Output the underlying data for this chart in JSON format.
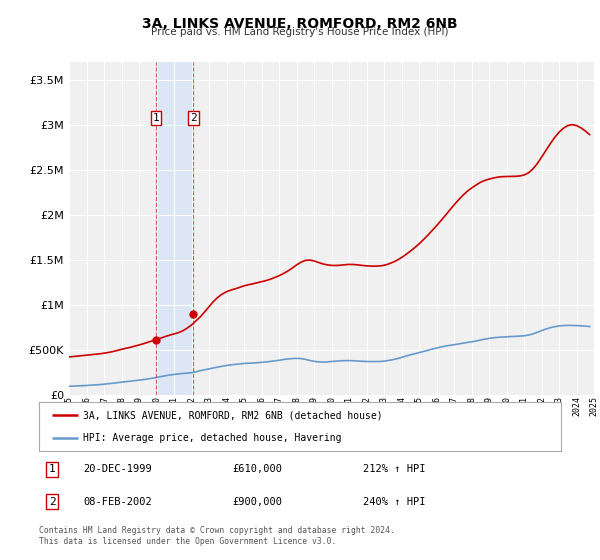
{
  "title": "3A, LINKS AVENUE, ROMFORD, RM2 6NB",
  "subtitle": "Price paid vs. HM Land Registry's House Price Index (HPI)",
  "red_label": "3A, LINKS AVENUE, ROMFORD, RM2 6NB (detached house)",
  "blue_label": "HPI: Average price, detached house, Havering",
  "sale1_date": "20-DEC-1999",
  "sale1_price": 610000,
  "sale1_hpi": "212%",
  "sale2_date": "08-FEB-2002",
  "sale2_price": 900000,
  "sale2_hpi": "240%",
  "sale1_x": 1999.97,
  "sale2_x": 2002.1,
  "copyright": "Contains HM Land Registry data © Crown copyright and database right 2024.\nThis data is licensed under the Open Government Licence v3.0.",
  "ylim": [
    0,
    3700000
  ],
  "xlim_start": 1995,
  "xlim_end": 2025,
  "background_color": "#ffffff",
  "plot_bg_color": "#f0f0f0",
  "grid_color": "#ffffff",
  "shade_color": "#dce6f5",
  "red_color": "#cc0000",
  "blue_color": "#6699cc",
  "dashed_color": "#cc0000",
  "hpi_years": [
    1995.0,
    1995.25,
    1995.5,
    1995.75,
    1996.0,
    1996.25,
    1996.5,
    1996.75,
    1997.0,
    1997.25,
    1997.5,
    1997.75,
    1998.0,
    1998.25,
    1998.5,
    1998.75,
    1999.0,
    1999.25,
    1999.5,
    1999.75,
    2000.0,
    2000.25,
    2000.5,
    2000.75,
    2001.0,
    2001.25,
    2001.5,
    2001.75,
    2002.0,
    2002.25,
    2002.5,
    2002.75,
    2003.0,
    2003.25,
    2003.5,
    2003.75,
    2004.0,
    2004.25,
    2004.5,
    2004.75,
    2005.0,
    2005.25,
    2005.5,
    2005.75,
    2006.0,
    2006.25,
    2006.5,
    2006.75,
    2007.0,
    2007.25,
    2007.5,
    2007.75,
    2008.0,
    2008.25,
    2008.5,
    2008.75,
    2009.0,
    2009.25,
    2009.5,
    2009.75,
    2010.0,
    2010.25,
    2010.5,
    2010.75,
    2011.0,
    2011.25,
    2011.5,
    2011.75,
    2012.0,
    2012.25,
    2012.5,
    2012.75,
    2013.0,
    2013.25,
    2013.5,
    2013.75,
    2014.0,
    2014.25,
    2014.5,
    2014.75,
    2015.0,
    2015.25,
    2015.5,
    2015.75,
    2016.0,
    2016.25,
    2016.5,
    2016.75,
    2017.0,
    2017.25,
    2017.5,
    2017.75,
    2018.0,
    2018.25,
    2018.5,
    2018.75,
    2019.0,
    2019.25,
    2019.5,
    2019.75,
    2020.0,
    2020.25,
    2020.5,
    2020.75,
    2021.0,
    2021.25,
    2021.5,
    2021.75,
    2022.0,
    2022.25,
    2022.5,
    2022.75,
    2023.0,
    2023.25,
    2023.5,
    2023.75,
    2024.0,
    2024.25,
    2024.5,
    2024.75
  ],
  "hpi_values": [
    95000,
    97000,
    99000,
    101000,
    104000,
    107000,
    110000,
    113000,
    118000,
    123000,
    128000,
    134000,
    140000,
    146000,
    151000,
    157000,
    163000,
    169000,
    176000,
    184000,
    193000,
    202000,
    211000,
    219000,
    226000,
    232000,
    237000,
    241000,
    245000,
    255000,
    268000,
    278000,
    288000,
    298000,
    308000,
    317000,
    325000,
    332000,
    338000,
    343000,
    348000,
    351000,
    353000,
    356000,
    360000,
    365000,
    371000,
    377000,
    383000,
    391000,
    398000,
    402000,
    405000,
    402000,
    394000,
    382000,
    372000,
    366000,
    363000,
    365000,
    370000,
    374000,
    377000,
    379000,
    380000,
    378000,
    375000,
    372000,
    370000,
    369000,
    369000,
    370000,
    374000,
    381000,
    390000,
    401000,
    415000,
    430000,
    444000,
    456000,
    468000,
    481000,
    494000,
    507000,
    519000,
    531000,
    541000,
    549000,
    556000,
    564000,
    573000,
    581000,
    588000,
    597000,
    608000,
    618000,
    626000,
    633000,
    638000,
    641000,
    644000,
    647000,
    649000,
    652000,
    655000,
    663000,
    676000,
    693000,
    712000,
    730000,
    745000,
    756000,
    764000,
    769000,
    771000,
    770000,
    769000,
    766000,
    762000,
    758000
  ],
  "red_years": [
    1995.0,
    1995.25,
    1995.5,
    1995.75,
    1996.0,
    1996.25,
    1996.5,
    1996.75,
    1997.0,
    1997.25,
    1997.5,
    1997.75,
    1998.0,
    1998.25,
    1998.5,
    1998.75,
    1999.0,
    1999.25,
    1999.5,
    1999.75,
    2000.0,
    2000.25,
    2000.5,
    2000.75,
    2001.0,
    2001.25,
    2001.5,
    2001.75,
    2002.0,
    2002.25,
    2002.5,
    2002.75,
    2003.0,
    2003.25,
    2003.5,
    2003.75,
    2004.0,
    2004.25,
    2004.5,
    2004.75,
    2005.0,
    2005.25,
    2005.5,
    2005.75,
    2006.0,
    2006.25,
    2006.5,
    2006.75,
    2007.0,
    2007.25,
    2007.5,
    2007.75,
    2008.0,
    2008.25,
    2008.5,
    2008.75,
    2009.0,
    2009.25,
    2009.5,
    2009.75,
    2010.0,
    2010.25,
    2010.5,
    2010.75,
    2011.0,
    2011.25,
    2011.5,
    2011.75,
    2012.0,
    2012.25,
    2012.5,
    2012.75,
    2013.0,
    2013.25,
    2013.5,
    2013.75,
    2014.0,
    2014.25,
    2014.5,
    2014.75,
    2015.0,
    2015.25,
    2015.5,
    2015.75,
    2016.0,
    2016.25,
    2016.5,
    2016.75,
    2017.0,
    2017.25,
    2017.5,
    2017.75,
    2018.0,
    2018.25,
    2018.5,
    2018.75,
    2019.0,
    2019.25,
    2019.5,
    2019.75,
    2020.0,
    2020.25,
    2020.5,
    2020.75,
    2021.0,
    2021.25,
    2021.5,
    2021.75,
    2022.0,
    2022.25,
    2022.5,
    2022.75,
    2023.0,
    2023.25,
    2023.5,
    2023.75,
    2024.0,
    2024.25,
    2024.5,
    2024.75
  ],
  "red_values": [
    420000,
    425000,
    430000,
    435000,
    440000,
    445000,
    450000,
    455000,
    462000,
    470000,
    480000,
    492000,
    505000,
    516000,
    527000,
    540000,
    553000,
    567000,
    583000,
    599000,
    614000,
    630000,
    647000,
    662000,
    676000,
    690000,
    710000,
    740000,
    775000,
    820000,
    865000,
    920000,
    978000,
    1035000,
    1082000,
    1118000,
    1145000,
    1163000,
    1177000,
    1193000,
    1210000,
    1222000,
    1232000,
    1244000,
    1256000,
    1268000,
    1283000,
    1302000,
    1322000,
    1346000,
    1374000,
    1406000,
    1442000,
    1472000,
    1492000,
    1497000,
    1487000,
    1470000,
    1454000,
    1443000,
    1437000,
    1436000,
    1439000,
    1444000,
    1448000,
    1447000,
    1443000,
    1437000,
    1432000,
    1429000,
    1429000,
    1431000,
    1438000,
    1452000,
    1471000,
    1495000,
    1524000,
    1557000,
    1594000,
    1633000,
    1675000,
    1722000,
    1772000,
    1824000,
    1877000,
    1933000,
    1991000,
    2050000,
    2108000,
    2163000,
    2214000,
    2259000,
    2295000,
    2328000,
    2358000,
    2380000,
    2395000,
    2407000,
    2417000,
    2422000,
    2424000,
    2425000,
    2426000,
    2430000,
    2440000,
    2464000,
    2506000,
    2565000,
    2637000,
    2713000,
    2788000,
    2857000,
    2915000,
    2960000,
    2990000,
    3000000,
    2990000,
    2965000,
    2930000,
    2890000
  ]
}
